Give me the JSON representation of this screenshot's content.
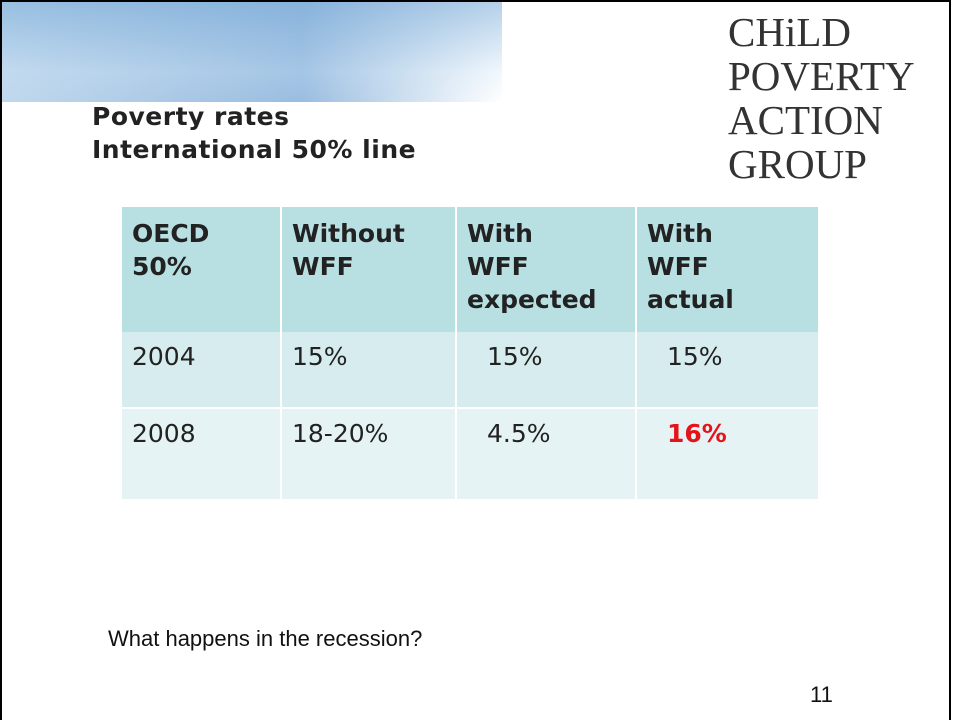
{
  "logo": [
    "CHiLD",
    "POVERTY",
    "ACTION",
    "GROUP"
  ],
  "title": [
    "Poverty rates",
    "International 50% line"
  ],
  "table": {
    "header": [
      [
        "OECD",
        "50%"
      ],
      [
        "Without",
        "WFF"
      ],
      [
        "With",
        "WFF",
        "expected"
      ],
      [
        "With",
        "WFF",
        "actual"
      ]
    ],
    "rows": [
      [
        "2004",
        "15%",
        "15%",
        "15%"
      ],
      [
        "2008",
        "18-20%",
        "4.5%",
        "16%"
      ]
    ]
  },
  "footer": {
    "question": "What happens in the recession?",
    "page_number": "11"
  }
}
